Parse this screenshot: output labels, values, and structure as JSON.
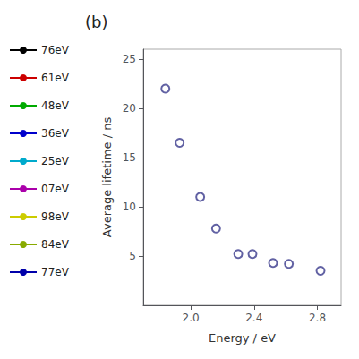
{
  "chart_data": {
    "type": "scatter",
    "title": "(b)",
    "xlabel": "Energy / eV",
    "ylabel": "Average lifetime / ns",
    "x": [
      1.84,
      1.93,
      2.06,
      2.16,
      2.3,
      2.39,
      2.52,
      2.62,
      2.82
    ],
    "series": [
      {
        "type": "scatter",
        "color": "#3a3a8c",
        "marker": "circle",
        "values": [
          22.0,
          16.5,
          11.0,
          7.8,
          5.2,
          5.2,
          4.3,
          4.2,
          3.5
        ]
      },
      {
        "type": "line",
        "name": "76eV",
        "color": "#000000",
        "values": [
          null,
          null,
          null,
          null,
          null,
          null,
          null,
          null,
          null
        ]
      },
      {
        "type": "line",
        "name": "61eV",
        "color": "#cc0000",
        "values": [
          null,
          null,
          null,
          null,
          null,
          null,
          null,
          null,
          null
        ]
      },
      {
        "type": "line",
        "name": "48eV",
        "color": "#00aa00",
        "values": [
          null,
          null,
          null,
          null,
          null,
          null,
          null,
          null,
          null
        ]
      },
      {
        "type": "line",
        "name": "36eV",
        "color": "#0000cc",
        "values": [
          null,
          null,
          null,
          null,
          null,
          null,
          null,
          null,
          null
        ]
      },
      {
        "type": "line",
        "name": "25eV",
        "color": "#00aacc",
        "values": [
          null,
          null,
          null,
          null,
          null,
          null,
          null,
          null,
          null
        ]
      },
      {
        "type": "line",
        "name": "07eV",
        "color": "#aa00aa",
        "values": [
          null,
          null,
          null,
          null,
          null,
          null,
          null,
          null,
          null
        ]
      },
      {
        "type": "line",
        "name": "98eV",
        "color": "#cccc00",
        "values": [
          null,
          null,
          null,
          null,
          null,
          null,
          null,
          null,
          null
        ]
      },
      {
        "type": "line",
        "name": "84eV",
        "color": "#88aa00",
        "values": [
          null,
          null,
          null,
          null,
          null,
          null,
          null,
          null,
          null
        ]
      },
      {
        "type": "line",
        "name": "77eV",
        "color": "#0000aa",
        "values": [
          null,
          null,
          null,
          null,
          null,
          null,
          null,
          null,
          null
        ]
      }
    ],
    "xlim": [
      1.7,
      2.95
    ],
    "ylim": [
      0,
      26
    ],
    "xticks": [
      {
        "value": 2.0,
        "label": "2.0"
      },
      {
        "value": 2.4,
        "label": "2.4"
      },
      {
        "value": 2.8,
        "label": "2.8"
      }
    ],
    "yticks": [
      5,
      10,
      15,
      20,
      25
    ],
    "grid": false,
    "legend": "left"
  }
}
